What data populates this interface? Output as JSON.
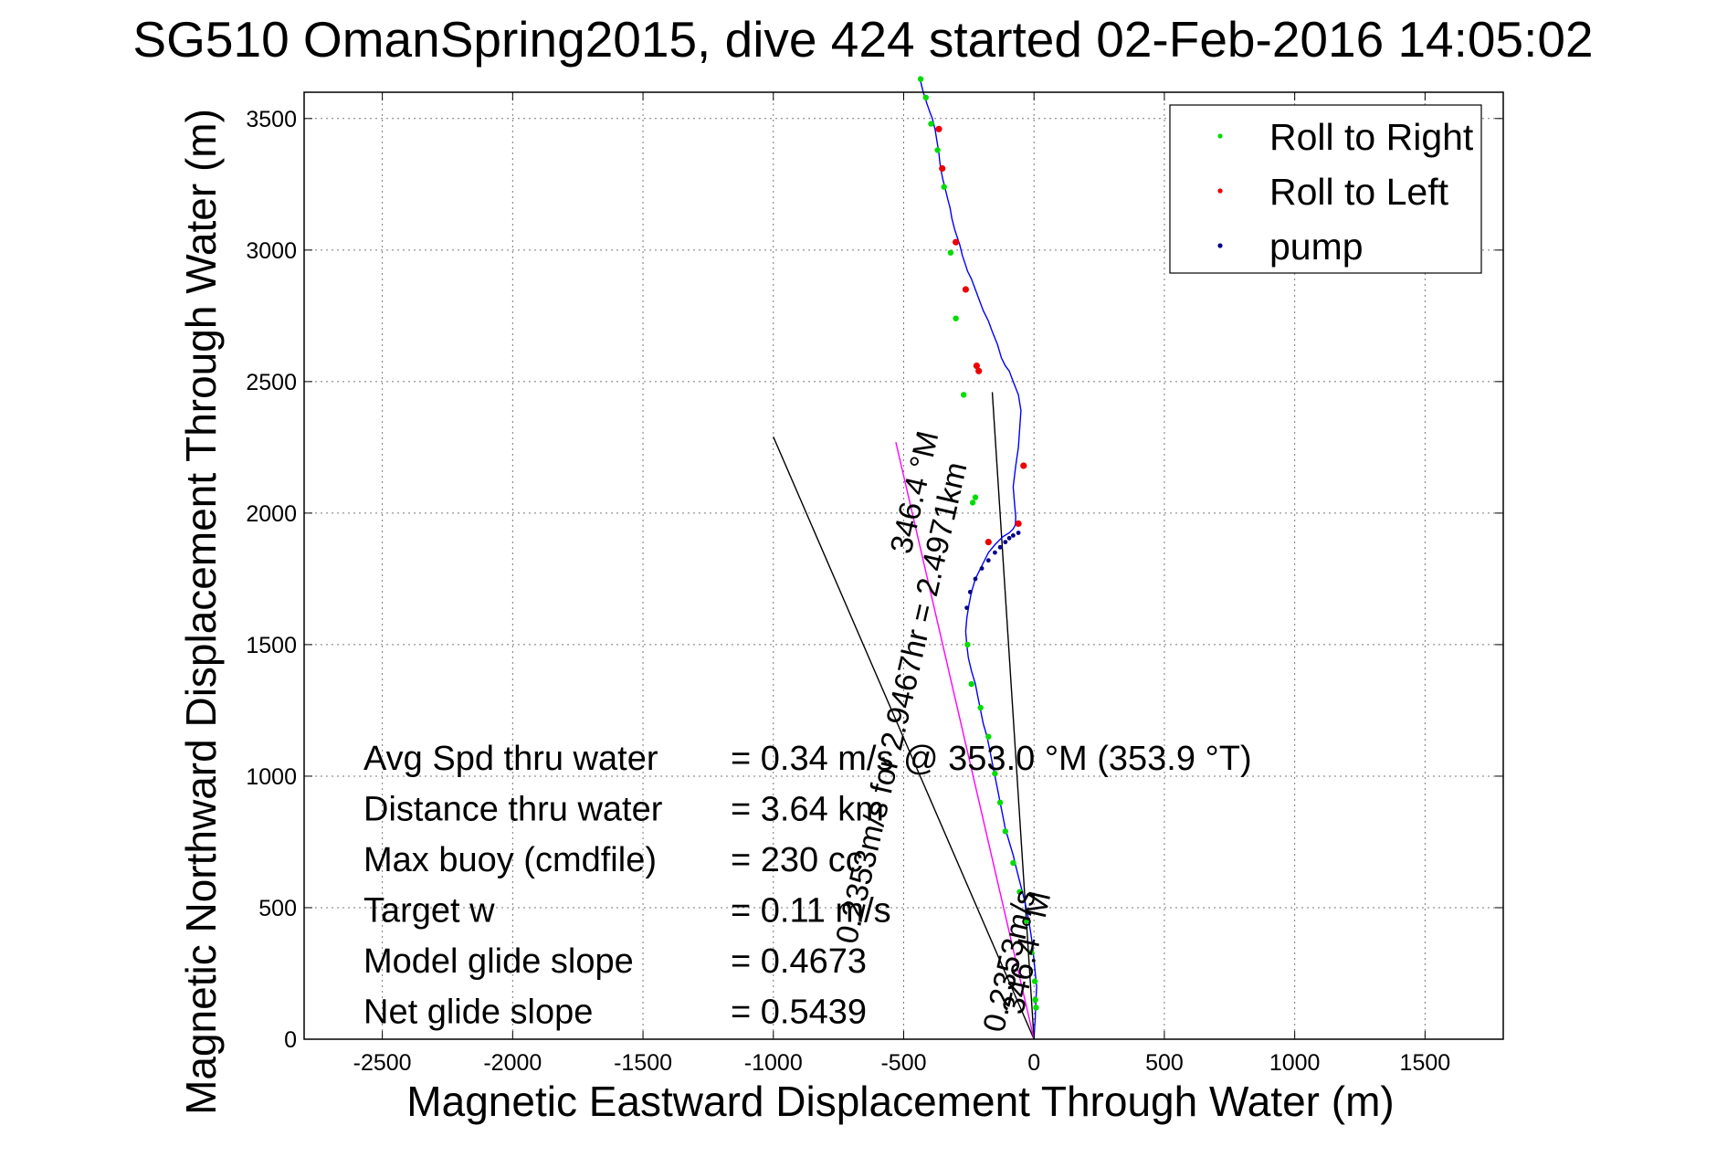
{
  "chart_data": {
    "type": "line",
    "title": "SG510 OmanSpring2015, dive 424 started 02-Feb-2016 14:05:02",
    "xlabel": "Magnetic Eastward Displacement Through Water (m)",
    "ylabel": "Magnetic Northward Displacement Through Water (m)",
    "xlim": [
      -2800,
      1800
    ],
    "ylim": [
      0,
      3600
    ],
    "x_ticks": [
      -2500,
      -2000,
      -1500,
      -1000,
      -500,
      0,
      500,
      1000,
      1500
    ],
    "y_ticks": [
      0,
      500,
      1000,
      1500,
      2000,
      2500,
      3000,
      3500
    ],
    "grid": true,
    "legend_position": "top-right",
    "colors": {
      "track": "#0000ff",
      "roll_right": "#00dd00",
      "roll_left": "#ee0000",
      "pump": "#000088",
      "heading": "#ff00ff",
      "reference_line": "#000000",
      "grid": "#777777"
    },
    "series": [
      {
        "key": "track",
        "x": [
          0,
          2,
          5,
          6,
          8,
          10,
          5,
          0,
          -5,
          -12,
          -20,
          -30,
          -42,
          -55,
          -68,
          -80,
          -95,
          -110,
          -120,
          -130,
          -140,
          -150,
          -160,
          -170,
          -180,
          -195,
          -205,
          -215,
          -225,
          -240,
          -252,
          -258,
          -262,
          -258,
          -250,
          -240,
          -225,
          -200,
          -175,
          -150,
          -120,
          -95,
          -80,
          -72,
          -70,
          -75,
          -80,
          -70,
          -60,
          -55,
          -50,
          -60,
          -80,
          -95,
          -110,
          -125,
          -140,
          -160,
          -175,
          -195,
          -210,
          -225,
          -240,
          -255,
          -265,
          -275,
          -285,
          -295,
          -305,
          -315,
          -322,
          -330,
          -340,
          -350,
          -358,
          -362,
          -365,
          -370,
          -375,
          -380,
          -385,
          -390,
          -398,
          -405,
          -412,
          -418,
          -425,
          -430,
          -435,
          -440
        ],
        "y": [
          0,
          40,
          80,
          120,
          160,
          200,
          250,
          300,
          350,
          400,
          450,
          500,
          550,
          600,
          650,
          700,
          750,
          800,
          850,
          900,
          950,
          1000,
          1050,
          1100,
          1150,
          1200,
          1250,
          1300,
          1350,
          1400,
          1450,
          1500,
          1550,
          1600,
          1650,
          1700,
          1750,
          1800,
          1850,
          1880,
          1910,
          1925,
          1940,
          1955,
          1985,
          2040,
          2100,
          2180,
          2250,
          2320,
          2390,
          2450,
          2500,
          2540,
          2560,
          2590,
          2640,
          2690,
          2730,
          2770,
          2810,
          2850,
          2890,
          2920,
          2950,
          2980,
          3020,
          3050,
          3080,
          3120,
          3160,
          3190,
          3230,
          3270,
          3310,
          3340,
          3370,
          3400,
          3430,
          3460,
          3480,
          3500,
          3520,
          3540,
          3560,
          3580,
          3600,
          3620,
          3640,
          3660
        ]
      },
      {
        "key": "roll_right",
        "name": "Roll to Right",
        "x": [
          5,
          8,
          3,
          -10,
          -30,
          -55,
          -80,
          -110,
          -130,
          -150,
          -175,
          -205,
          -240,
          -255,
          -235,
          -225,
          -270,
          -300,
          -320,
          -345,
          -370,
          -395,
          -415,
          -435
        ],
        "y": [
          150,
          120,
          220,
          330,
          450,
          560,
          670,
          790,
          900,
          1010,
          1150,
          1260,
          1350,
          1500,
          2040,
          2060,
          2450,
          2740,
          2990,
          3240,
          3380,
          3480,
          3580,
          3650
        ]
      },
      {
        "key": "roll_left",
        "name": "Roll to Left",
        "x": [
          -40,
          -60,
          -175,
          -262,
          -352,
          -365,
          -300,
          -220,
          -212
        ],
        "y": [
          2180,
          1960,
          1890,
          2850,
          3310,
          3460,
          3030,
          2560,
          2540
        ]
      },
      {
        "key": "pump",
        "name": "pump",
        "x": [
          -60,
          -80,
          -95,
          -110,
          -130,
          -150,
          -175,
          -200,
          -225,
          -245,
          -258
        ],
        "y": [
          1925,
          1915,
          1905,
          1890,
          1870,
          1850,
          1820,
          1790,
          1750,
          1700,
          1640
        ]
      },
      {
        "key": "heading_line",
        "x": [
          0,
          -530
        ],
        "y": [
          0,
          2270
        ]
      },
      {
        "key": "ref_line_long",
        "x": [
          0,
          -1000
        ],
        "y": [
          0,
          2290
        ]
      },
      {
        "key": "ref_line_short",
        "x": [
          0,
          -160
        ],
        "y": [
          0,
          2460
        ]
      }
    ],
    "annotations": [
      {
        "key": "heading_label_upper",
        "text": "0.2353m/s for 2.9467hr = 2.4971km",
        "x": -470,
        "y": 1270,
        "angle": -77
      },
      {
        "key": "heading_label_upper2",
        "text": "346.4 °M",
        "x": -420,
        "y": 2070,
        "angle": -77
      },
      {
        "key": "heading_label_lower",
        "text": "346.4 °M",
        "x": 10,
        "y": 320,
        "angle": -77
      },
      {
        "key": "heading_label_lower2",
        "text": "0.2353m/s",
        "x": -55,
        "y": 290,
        "angle": -77
      }
    ],
    "stats": [
      {
        "label": "Avg Spd thru water",
        "value": "=  0.34 m/s @ 353.0 °M (353.9 °T)"
      },
      {
        "label": "Distance thru water",
        "value": "=  3.64 km"
      },
      {
        "label": "Max buoy (cmdfile)",
        "value": "= 230 cc"
      },
      {
        "label": "Target w",
        "value": "= 0.11 m/s"
      },
      {
        "label": "Model glide slope",
        "value": "= 0.4673"
      },
      {
        "label": "Net glide slope",
        "value": "= 0.5439"
      }
    ]
  }
}
